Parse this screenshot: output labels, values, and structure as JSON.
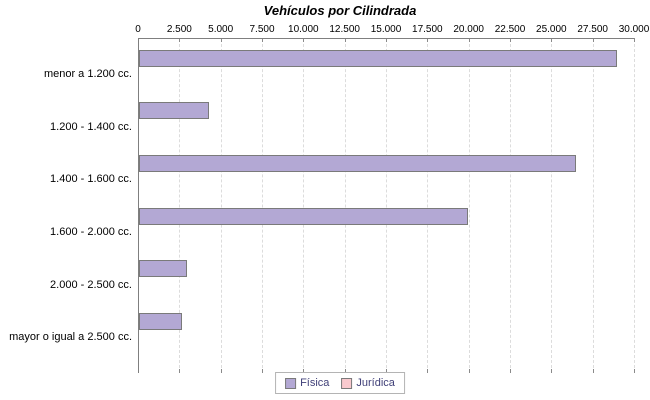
{
  "chart": {
    "title": "Vehículos por Cilindrada"
  },
  "chart_data": {
    "type": "bar",
    "orientation": "horizontal",
    "title": "Vehículos por Cilindrada",
    "categories": [
      "menor a 1.200 cc.",
      "1.200 - 1.400 cc.",
      "1.400 - 1.600 cc.",
      "1.600 - 2.000 cc.",
      "2.000 - 2.500 cc.",
      "mayor o igual a 2.500 cc."
    ],
    "series": [
      {
        "name": "Física",
        "color": "#b3a8d4",
        "values": [
          29000,
          4300,
          26500,
          19950,
          2950,
          2650
        ]
      },
      {
        "name": "Jurídica",
        "color": "#f9c9ce",
        "values": [
          0,
          0,
          0,
          0,
          0,
          0
        ]
      }
    ],
    "xlim": [
      0,
      30000
    ],
    "x_tick_step": 2500,
    "x_tick_labels": [
      "0",
      "2.500",
      "5.000",
      "7.500",
      "10.000",
      "12.500",
      "15.000",
      "17.500",
      "20.000",
      "22.500",
      "25.000",
      "27.500",
      "30.000"
    ],
    "axis_position": "top",
    "grid": "vertical-dashed",
    "legend_position": "bottom"
  },
  "colors": {
    "bar_border": "#7a7a7a",
    "axis": "#7f7f7f",
    "gridline": "#dcdcdc",
    "legend_border": "#b4b4b4",
    "legend_text": "#3f3f78",
    "title": "#000000"
  }
}
